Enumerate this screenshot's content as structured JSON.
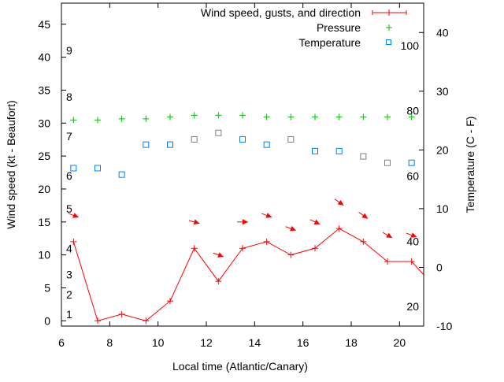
{
  "chart_data": {
    "type": "line",
    "xlabel": "Local time (Atlantic/Canary)",
    "ylabel": "Wind speed (kt - Beaufort)",
    "y2label": "Temperature (C - F)",
    "xlim": [
      6,
      21
    ],
    "ylim": [
      -0.8,
      48.2
    ],
    "y2lim": [
      -10,
      45
    ],
    "xticks": [
      6,
      8,
      10,
      12,
      14,
      16,
      18,
      20
    ],
    "yticks": [
      0,
      5,
      10,
      15,
      20,
      25,
      30,
      35,
      40,
      45
    ],
    "y2ticks": [
      -10,
      0,
      10,
      20,
      30,
      40
    ],
    "beaufort_labels": [
      {
        "label": "1",
        "kt": 1
      },
      {
        "label": "2",
        "kt": 4
      },
      {
        "label": "3",
        "kt": 7
      },
      {
        "label": "4",
        "kt": 11
      },
      {
        "label": "5",
        "kt": 17
      },
      {
        "label": "6",
        "kt": 22
      },
      {
        "label": "7",
        "kt": 28
      },
      {
        "label": "8",
        "kt": 34
      },
      {
        "label": "9",
        "kt": 41
      }
    ],
    "fahrenheit_labels": [
      {
        "label": "20",
        "f": 20
      },
      {
        "label": "40",
        "f": 40
      },
      {
        "label": "60",
        "f": 60
      },
      {
        "label": "80",
        "f": 80
      },
      {
        "label": "100",
        "f": 100
      }
    ],
    "legend_position": "top-right",
    "series": [
      {
        "name": "Wind speed, gusts, and direction",
        "color": "#ff0000",
        "x": [
          6.5,
          7.5,
          8.5,
          9.5,
          10.5,
          11.5,
          12.5,
          13.5,
          14.5,
          15.5,
          16.5,
          17.5,
          18.5,
          19.5,
          20.5,
          21
        ],
        "values": [
          12,
          0,
          1,
          0,
          3,
          11,
          6,
          11,
          12,
          10,
          11,
          14,
          12,
          9,
          9,
          7
        ],
        "gusts": [
          {
            "x": 6.5,
            "y": 16,
            "dir": 290
          },
          {
            "x": 11.5,
            "y": 15,
            "dir": 285
          },
          {
            "x": 12.5,
            "y": 10,
            "dir": 290
          },
          {
            "x": 13.5,
            "y": 15,
            "dir": 270
          },
          {
            "x": 14.5,
            "y": 16,
            "dir": 290
          },
          {
            "x": 15.5,
            "y": 14,
            "dir": 290
          },
          {
            "x": 16.5,
            "y": 15,
            "dir": 295
          },
          {
            "x": 17.5,
            "y": 18,
            "dir": 305
          },
          {
            "x": 18.5,
            "y": 16,
            "dir": 305
          },
          {
            "x": 19.5,
            "y": 13,
            "dir": 300
          },
          {
            "x": 20.5,
            "y": 13,
            "dir": 290
          }
        ]
      },
      {
        "name": "Pressure",
        "color": "#00c000",
        "axis": "y2",
        "x": [
          6.5,
          7.5,
          8.5,
          9.5,
          10.5,
          11.5,
          12.5,
          13.5,
          14.5,
          15.5,
          16.5,
          17.5,
          18.5,
          19.5,
          20.5
        ],
        "values": [
          25.1,
          25.1,
          25.3,
          25.3,
          25.6,
          25.9,
          25.9,
          25.9,
          25.6,
          25.6,
          25.6,
          25.6,
          25.6,
          25.6,
          25.6
        ]
      },
      {
        "name": "Temperature",
        "color": "#0080ff",
        "axis": "y2",
        "x": [
          6.5,
          7.5,
          8.5,
          9.5,
          10.5,
          11.5,
          12.5,
          13.5,
          14.5,
          15.5,
          16.5,
          17.5,
          18.5,
          19.5,
          20.5
        ],
        "values": [
          16.9,
          16.9,
          15.8,
          20.9,
          20.9,
          21.8,
          22.9,
          21.8,
          20.9,
          21.8,
          19.8,
          19.8,
          18.9,
          17.8,
          17.8
        ],
        "grey_points_x": [
          11.5,
          12.5,
          15.5,
          18.5,
          19.5
        ]
      }
    ]
  }
}
